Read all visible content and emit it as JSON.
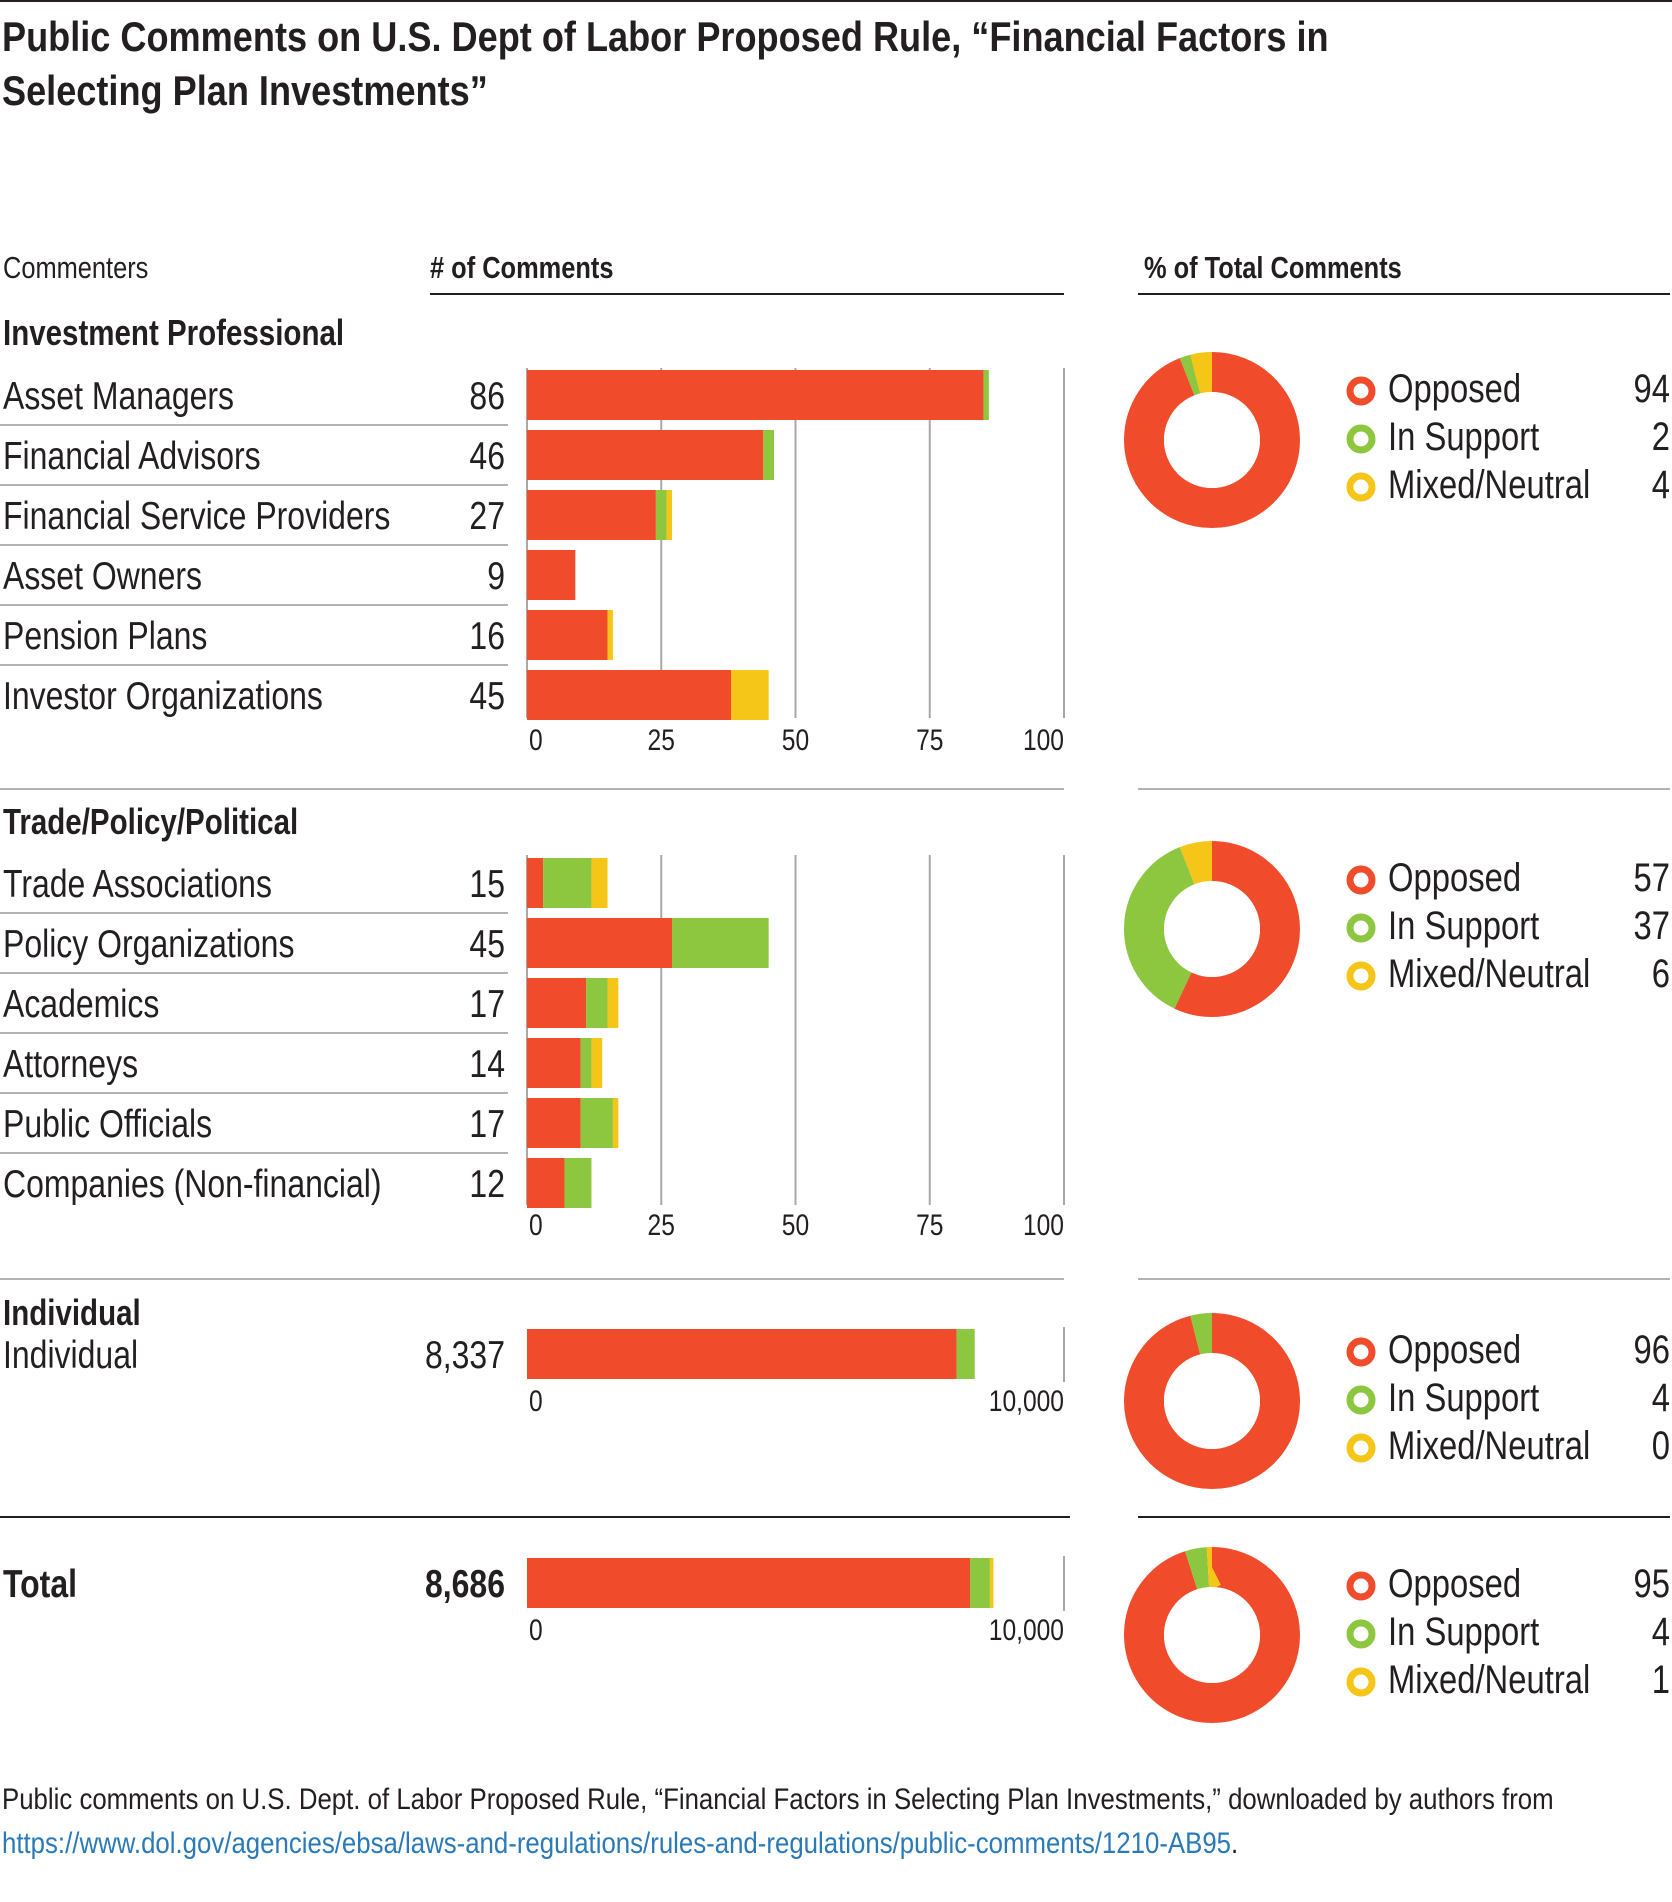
{
  "title": "Public Comments on U.S. Dept of Labor Proposed Rule, “Financial Factors in Selecting Plan Investments”",
  "headers": {
    "commenters": "Commenters",
    "comments": "# of Comments",
    "percent": "% of Total Comments"
  },
  "colors": {
    "opposed": "#f04b2a",
    "support": "#8dc63f",
    "neutral": "#f5c518",
    "grid": "#a8a8a8",
    "rule": "#b3b3b3"
  },
  "chart_data": [
    {
      "type": "bar",
      "group": "Investment Professional",
      "stacked": true,
      "categories": [
        "Asset Managers",
        "Financial Advisors",
        "Financial Service Providers",
        "Asset Owners",
        "Pension Plans",
        "Investor Organizations"
      ],
      "totals": [
        "86",
        "46",
        "27",
        "9",
        "16",
        "45"
      ],
      "series": [
        {
          "name": "Opposed",
          "values": [
            85,
            44,
            24,
            9,
            15,
            38
          ]
        },
        {
          "name": "In Support",
          "values": [
            1,
            2,
            2,
            0,
            0,
            0
          ]
        },
        {
          "name": "Mixed/Neutral",
          "values": [
            0,
            0,
            1,
            0,
            1,
            7
          ]
        }
      ],
      "xlim": [
        0,
        100
      ],
      "xticks": [
        "0",
        "25",
        "50",
        "75",
        "100"
      ],
      "grid": true
    },
    {
      "type": "pie",
      "group": "Investment Professional",
      "donut": true,
      "labels": [
        "Opposed",
        "In Support",
        "Mixed/Neutral"
      ],
      "values": [
        94,
        2,
        4
      ]
    },
    {
      "type": "bar",
      "group": "Trade/Policy/Political",
      "stacked": true,
      "categories": [
        "Trade Associations",
        "Policy Organizations",
        "Academics",
        "Attorneys",
        "Public Officials",
        "Companies (Non-financial)"
      ],
      "totals": [
        "15",
        "45",
        "17",
        "14",
        "17",
        "12"
      ],
      "series": [
        {
          "name": "Opposed",
          "values": [
            3,
            27,
            11,
            10,
            10,
            7
          ]
        },
        {
          "name": "In Support",
          "values": [
            9,
            18,
            4,
            2,
            6,
            5
          ]
        },
        {
          "name": "Mixed/Neutral",
          "values": [
            3,
            0,
            2,
            2,
            1,
            0
          ]
        }
      ],
      "xlim": [
        0,
        100
      ],
      "xticks": [
        "0",
        "25",
        "50",
        "75",
        "100"
      ],
      "grid": true
    },
    {
      "type": "pie",
      "group": "Trade/Policy/Political",
      "donut": true,
      "labels": [
        "Opposed",
        "In Support",
        "Mixed/Neutral"
      ],
      "values": [
        57,
        37,
        6
      ]
    },
    {
      "type": "bar",
      "group": "Individual",
      "stacked": true,
      "categories": [
        "Individual"
      ],
      "totals": [
        "8,337"
      ],
      "series": [
        {
          "name": "Opposed",
          "values": [
            8000
          ]
        },
        {
          "name": "In Support",
          "values": [
            337
          ]
        },
        {
          "name": "Mixed/Neutral",
          "values": [
            0
          ]
        }
      ],
      "xlim": [
        0,
        10000
      ],
      "xticks": [
        "0",
        "10,000"
      ],
      "grid": false
    },
    {
      "type": "pie",
      "group": "Individual",
      "donut": true,
      "labels": [
        "Opposed",
        "In Support",
        "Mixed/Neutral"
      ],
      "values": [
        96,
        4,
        0
      ]
    },
    {
      "type": "bar",
      "group": "Total",
      "stacked": true,
      "categories": [
        "Total"
      ],
      "totals": [
        "8,686"
      ],
      "series": [
        {
          "name": "Opposed",
          "values": [
            8250
          ]
        },
        {
          "name": "In Support",
          "values": [
            370
          ]
        },
        {
          "name": "Mixed/Neutral",
          "values": [
            66
          ]
        }
      ],
      "xlim": [
        0,
        10000
      ],
      "xticks": [
        "0",
        "10,000"
      ],
      "grid": false
    },
    {
      "type": "pie",
      "group": "Total",
      "donut": true,
      "labels": [
        "Opposed",
        "In Support",
        "Mixed/Neutral"
      ],
      "values": [
        95,
        4,
        1
      ]
    }
  ],
  "footnote": {
    "text": "Public comments on U.S. Dept. of Labor Proposed Rule, “Financial Factors in Selecting Plan Investments,” downloaded by authors from",
    "link": "https://www.dol.gov/agencies/ebsa/laws-and-regulations/rules-and-regulations/public-comments/1210-AB95",
    "end": "."
  }
}
